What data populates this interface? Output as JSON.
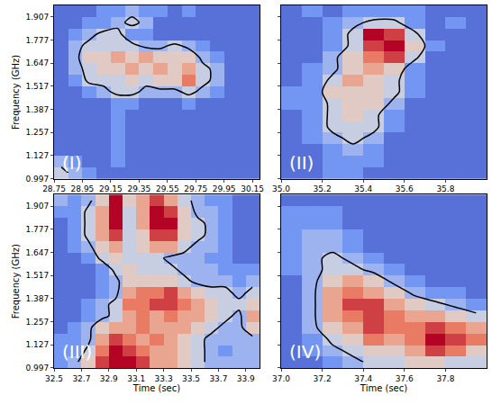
{
  "chart_data": [
    {
      "type": "heatmap",
      "annotation": "(I)",
      "ylabel": "Frequency (GHz)",
      "color": "coolwarm",
      "tick_labels": true,
      "xlim": [
        28.75,
        30.2
      ],
      "ylim": [
        0.997,
        1.972
      ],
      "xticks": [
        28.75,
        28.95,
        29.15,
        29.35,
        29.55,
        29.75,
        29.95,
        30.15
      ],
      "yticks": [
        0.997,
        1.127,
        1.257,
        1.387,
        1.517,
        1.647,
        1.777,
        1.907
      ],
      "zlim": [
        0,
        9
      ],
      "contour_level": 3.5,
      "x": [
        28.8,
        28.9,
        29.0,
        29.1,
        29.2,
        29.3,
        29.4,
        29.5,
        29.6,
        29.7,
        29.8,
        29.9,
        30.0,
        30.1,
        30.2
      ],
      "y": [
        1.03,
        1.095,
        1.16,
        1.225,
        1.29,
        1.355,
        1.42,
        1.485,
        1.55,
        1.615,
        1.68,
        1.745,
        1.81,
        1.875,
        1.94
      ],
      "z": [
        [
          4,
          3,
          2,
          1,
          1,
          1,
          1,
          1,
          1,
          1,
          1,
          1,
          1,
          1,
          1
        ],
        [
          3,
          2,
          1,
          1,
          2,
          1,
          1,
          1,
          1,
          1,
          1,
          1,
          1,
          1,
          1
        ],
        [
          1,
          1,
          1,
          1,
          2,
          1,
          1,
          1,
          1,
          1,
          1,
          1,
          1,
          1,
          1
        ],
        [
          1,
          1,
          1,
          1,
          2,
          1,
          1,
          1,
          1,
          1,
          1,
          1,
          1,
          1,
          1
        ],
        [
          1,
          1,
          1,
          1,
          2,
          1,
          1,
          1,
          1,
          1,
          1,
          1,
          1,
          1,
          1
        ],
        [
          1,
          1,
          1,
          1,
          2,
          1,
          1,
          1,
          1,
          1,
          1,
          1,
          1,
          1,
          1
        ],
        [
          1,
          1,
          1,
          1,
          2,
          2,
          1,
          1,
          1,
          2,
          1,
          1,
          1,
          1,
          1
        ],
        [
          1,
          1,
          2,
          3,
          4,
          4,
          3,
          3,
          3,
          4,
          3,
          2,
          1,
          1,
          1
        ],
        [
          1,
          2,
          4,
          4,
          4,
          5,
          4,
          5,
          5,
          7,
          4,
          3,
          1,
          1,
          1
        ],
        [
          1,
          3,
          4,
          5,
          5,
          6,
          5,
          6,
          5,
          6,
          4,
          3,
          1,
          1,
          1
        ],
        [
          1,
          3,
          5,
          5,
          6,
          5,
          6,
          5,
          5,
          5,
          3,
          2,
          1,
          1,
          1
        ],
        [
          1,
          3,
          4,
          4,
          4,
          4,
          3,
          3,
          4,
          3,
          2,
          1,
          1,
          1,
          1
        ],
        [
          1,
          2,
          3,
          4,
          4,
          2,
          2,
          1,
          1,
          1,
          1,
          1,
          1,
          1,
          1
        ],
        [
          1,
          1,
          2,
          2,
          3,
          4,
          3,
          1,
          1,
          1,
          1,
          1,
          1,
          1,
          1
        ],
        [
          1,
          1,
          1,
          2,
          2,
          3,
          2,
          2,
          1,
          2,
          1,
          1,
          1,
          1,
          1
        ]
      ]
    },
    {
      "type": "heatmap",
      "annotation": "(II)",
      "color": "coolwarm",
      "tick_labels": "x",
      "xlim": [
        35.0,
        36.0
      ],
      "ylim": [
        0.997,
        1.972
      ],
      "xticks": [
        {
          "value": 35.0,
          "label": "35.0"
        },
        35.2,
        35.4,
        35.6,
        35.8
      ],
      "yticks": [
        0.997,
        1.127,
        1.257,
        1.387,
        1.517,
        1.647,
        1.777,
        1.907
      ],
      "zlim": [
        0,
        9
      ],
      "contour_level": 3.5,
      "x": [
        35.05,
        35.15,
        35.25,
        35.35,
        35.45,
        35.55,
        35.65,
        35.75,
        35.85,
        35.95
      ],
      "y": [
        1.03,
        1.095,
        1.16,
        1.225,
        1.29,
        1.355,
        1.42,
        1.485,
        1.55,
        1.615,
        1.68,
        1.745,
        1.81,
        1.875,
        1.94
      ],
      "z": [
        [
          1,
          1,
          2,
          2,
          1,
          1,
          1,
          1,
          1,
          1
        ],
        [
          1,
          1,
          2,
          2,
          2,
          1,
          1,
          1,
          1,
          1
        ],
        [
          1,
          1,
          2,
          3,
          2,
          1,
          1,
          1,
          1,
          1
        ],
        [
          1,
          2,
          3,
          4,
          3,
          1,
          1,
          1,
          1,
          1
        ],
        [
          1,
          2,
          4,
          4,
          4,
          2,
          1,
          1,
          1,
          1
        ],
        [
          1,
          2,
          4,
          5,
          4,
          2,
          1,
          1,
          1,
          1
        ],
        [
          2,
          2,
          4,
          5,
          5,
          3,
          1,
          1,
          1,
          1
        ],
        [
          2,
          2,
          5,
          5,
          5,
          4,
          2,
          1,
          1,
          1
        ],
        [
          1,
          2,
          4,
          6,
          5,
          4,
          2,
          1,
          1,
          1
        ],
        [
          1,
          2,
          3,
          5,
          6,
          5,
          2,
          1,
          1,
          1
        ],
        [
          1,
          1,
          3,
          5,
          7,
          8,
          4,
          1,
          1,
          1
        ],
        [
          1,
          1,
          2,
          4,
          8,
          9,
          5,
          2,
          1,
          1
        ],
        [
          1,
          1,
          2,
          4,
          9,
          8,
          4,
          1,
          1,
          1
        ],
        [
          1,
          1,
          2,
          3,
          4,
          4,
          2,
          1,
          2,
          1
        ],
        [
          1,
          2,
          1,
          2,
          2,
          2,
          2,
          1,
          1,
          1
        ]
      ]
    },
    {
      "type": "heatmap",
      "annotation": "(III)",
      "xlabel": "Time (sec)",
      "ylabel": "Frequency (GHz)",
      "color": "coolwarm",
      "tick_labels": true,
      "xlim": [
        32.5,
        34.0
      ],
      "ylim": [
        0.997,
        1.972
      ],
      "xticks": [
        32.5,
        32.7,
        32.9,
        33.1,
        33.3,
        33.5,
        33.7,
        33.9
      ],
      "yticks": [
        0.997,
        1.127,
        1.257,
        1.387,
        1.517,
        1.647,
        1.777,
        1.907
      ],
      "zlim": [
        0,
        9
      ],
      "contour_level": 3.5,
      "x": [
        32.55,
        32.65,
        32.75,
        32.85,
        32.95,
        33.05,
        33.15,
        33.25,
        33.35,
        33.45,
        33.55,
        33.65,
        33.75,
        33.85,
        33.95
      ],
      "y": [
        1.03,
        1.095,
        1.16,
        1.225,
        1.29,
        1.355,
        1.42,
        1.485,
        1.55,
        1.615,
        1.68,
        1.745,
        1.81,
        1.875,
        1.94
      ],
      "z": [
        [
          2,
          3,
          5,
          8,
          9,
          9,
          8,
          6,
          6,
          5,
          4,
          3,
          3,
          3,
          3
        ],
        [
          2,
          2,
          4,
          7,
          9,
          8,
          7,
          6,
          6,
          5,
          4,
          3,
          2,
          3,
          3
        ],
        [
          2,
          2,
          3,
          6,
          8,
          7,
          6,
          7,
          6,
          5,
          4,
          3,
          3,
          3,
          3
        ],
        [
          1,
          2,
          3,
          5,
          6,
          6,
          7,
          6,
          6,
          6,
          5,
          4,
          3,
          3,
          5
        ],
        [
          1,
          1,
          2,
          3,
          4,
          6,
          7,
          6,
          7,
          6,
          6,
          5,
          4,
          3,
          6
        ],
        [
          1,
          1,
          2,
          3,
          4,
          7,
          7,
          8,
          8,
          7,
          6,
          5,
          4,
          4,
          5
        ],
        [
          1,
          1,
          1,
          2,
          3,
          6,
          7,
          7,
          8,
          6,
          5,
          4,
          4,
          3,
          4
        ],
        [
          1,
          1,
          1,
          2,
          3,
          5,
          5,
          5,
          5,
          4,
          3,
          3,
          3,
          2,
          3
        ],
        [
          1,
          1,
          1,
          2,
          4,
          5,
          4,
          4,
          4,
          3,
          3,
          3,
          2,
          2,
          2
        ],
        [
          1,
          1,
          2,
          4,
          5,
          4,
          4,
          4,
          3,
          3,
          3,
          2,
          2,
          1,
          1
        ],
        [
          1,
          2,
          3,
          5,
          6,
          4,
          5,
          6,
          6,
          4,
          3,
          3,
          2,
          1,
          1
        ],
        [
          1,
          2,
          4,
          6,
          8,
          4,
          5,
          8,
          8,
          5,
          4,
          3,
          2,
          1,
          1
        ],
        [
          1,
          2,
          4,
          6,
          9,
          4,
          6,
          9,
          9,
          5,
          4,
          3,
          2,
          1,
          1
        ],
        [
          2,
          2,
          4,
          6,
          9,
          4,
          6,
          9,
          8,
          5,
          3,
          3,
          2,
          1,
          1
        ],
        [
          3,
          2,
          3,
          5,
          9,
          5,
          6,
          8,
          6,
          4,
          3,
          2,
          2,
          1,
          1
        ]
      ]
    },
    {
      "type": "heatmap",
      "annotation": "(IV)",
      "xlabel": "Time (sec)",
      "color": "coolwarm",
      "tick_labels": "x",
      "xlim": [
        37.0,
        38.0
      ],
      "ylim": [
        0.997,
        1.972
      ],
      "xticks": [
        {
          "value": 37.0,
          "label": "37.0"
        },
        37.2,
        37.4,
        37.6,
        37.8
      ],
      "yticks": [
        0.997,
        1.127,
        1.257,
        1.387,
        1.517,
        1.647,
        1.777,
        1.907
      ],
      "zlim": [
        0,
        9
      ],
      "contour_level": 3.5,
      "x": [
        37.05,
        37.15,
        37.25,
        37.35,
        37.45,
        37.55,
        37.65,
        37.75,
        37.85,
        37.95
      ],
      "y": [
        1.03,
        1.095,
        1.16,
        1.225,
        1.29,
        1.355,
        1.42,
        1.485,
        1.55,
        1.615,
        1.68,
        1.745,
        1.81,
        1.875,
        1.94
      ],
      "z": [
        [
          1,
          1,
          2,
          3,
          4,
          4,
          5,
          5,
          4,
          4
        ],
        [
          1,
          2,
          3,
          4,
          5,
          5,
          6,
          8,
          7,
          5
        ],
        [
          1,
          2,
          4,
          5,
          7,
          6,
          7,
          9,
          8,
          7
        ],
        [
          1,
          3,
          5,
          6,
          8,
          7,
          7,
          8,
          7,
          6
        ],
        [
          1,
          3,
          6,
          7,
          8,
          7,
          6,
          6,
          5,
          4
        ],
        [
          1,
          3,
          6,
          8,
          8,
          6,
          5,
          4,
          3,
          2
        ],
        [
          1,
          3,
          6,
          7,
          6,
          5,
          3,
          2,
          2,
          1
        ],
        [
          1,
          3,
          5,
          6,
          5,
          3,
          2,
          1,
          1,
          1
        ],
        [
          2,
          3,
          4,
          4,
          3,
          2,
          1,
          1,
          1,
          1
        ],
        [
          2,
          3,
          4,
          3,
          2,
          1,
          1,
          1,
          1,
          1
        ],
        [
          2,
          3,
          3,
          2,
          1,
          1,
          1,
          1,
          1,
          1
        ],
        [
          2,
          3,
          3,
          2,
          1,
          1,
          1,
          1,
          1,
          1
        ],
        [
          2,
          2,
          2,
          1,
          1,
          1,
          1,
          1,
          1,
          1
        ],
        [
          2,
          2,
          2,
          1,
          1,
          1,
          1,
          1,
          1,
          1
        ],
        [
          1,
          1,
          1,
          1,
          1,
          1,
          1,
          1,
          1,
          1
        ]
      ]
    }
  ]
}
